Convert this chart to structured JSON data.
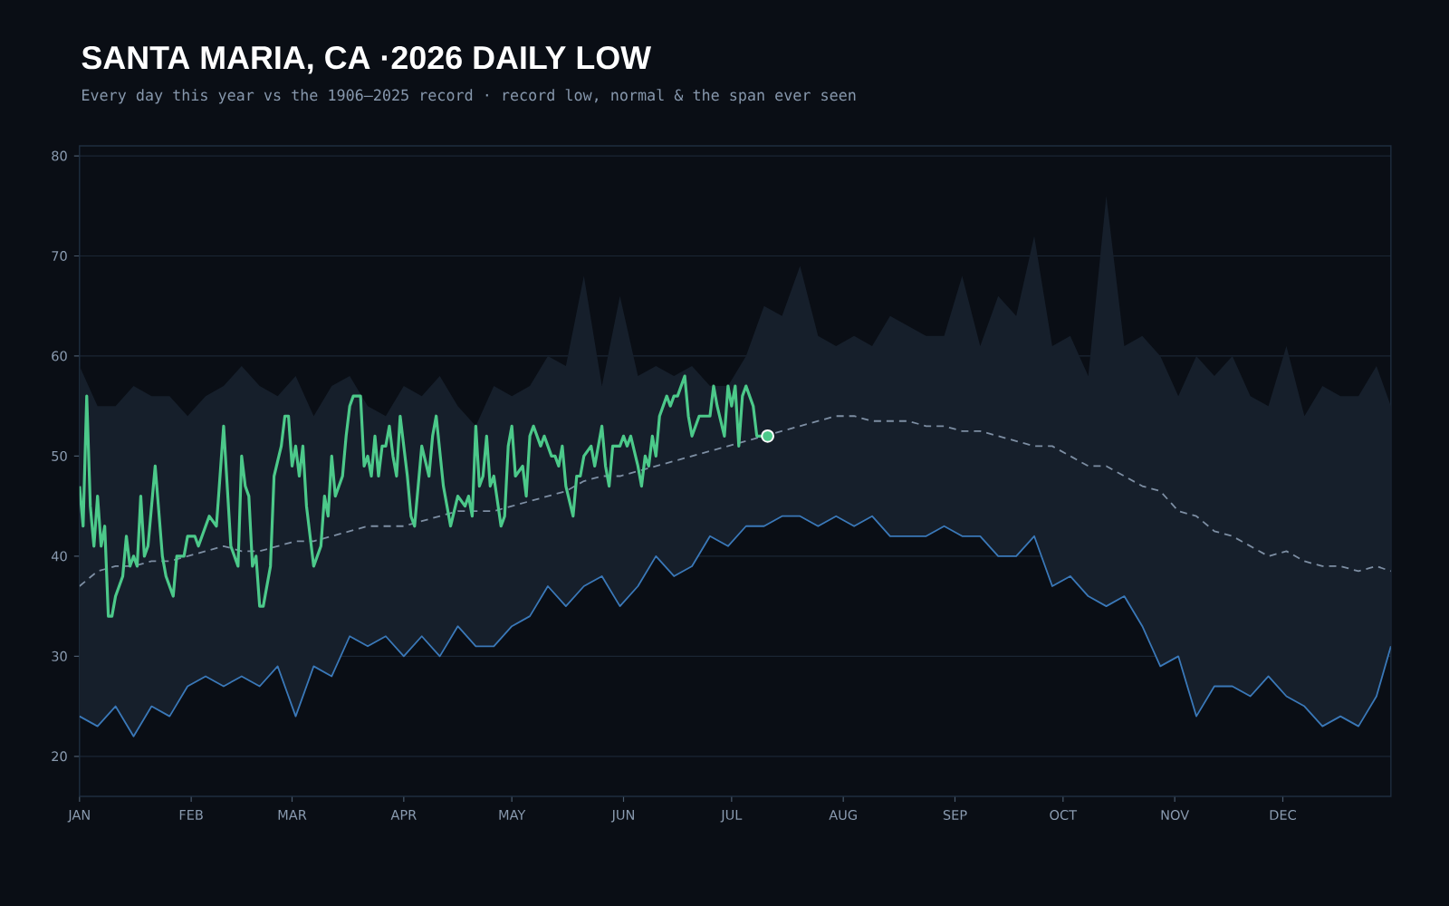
{
  "chart_data": {
    "type": "line",
    "title": "SANTA MARIA, CA ·2026 DAILY LOW",
    "subtitle": "Every day this year vs the 1906–2025 record · record low, normal & the span ever seen",
    "x": [
      "2026-01-01",
      "2026-01-06",
      "2026-01-11",
      "2026-01-16",
      "2026-01-21",
      "2026-01-26",
      "2026-01-31",
      "2026-02-05",
      "2026-02-10",
      "2026-02-15",
      "2026-02-20",
      "2026-02-25",
      "2026-03-02",
      "2026-03-07",
      "2026-03-12",
      "2026-03-17",
      "2026-03-22",
      "2026-03-27",
      "2026-04-01",
      "2026-04-06",
      "2026-04-11",
      "2026-04-16",
      "2026-04-21",
      "2026-04-26",
      "2026-05-01",
      "2026-05-06",
      "2026-05-11",
      "2026-05-16",
      "2026-05-21",
      "2026-05-26",
      "2026-05-31",
      "2026-06-05",
      "2026-06-10",
      "2026-06-15",
      "2026-06-20",
      "2026-06-25",
      "2026-06-30",
      "2026-07-05",
      "2026-07-10",
      "2026-07-15",
      "2026-07-20",
      "2026-07-25",
      "2026-07-30",
      "2026-08-04",
      "2026-08-09",
      "2026-08-14",
      "2026-08-19",
      "2026-08-24",
      "2026-08-29",
      "2026-09-03",
      "2026-09-08",
      "2026-09-13",
      "2026-09-18",
      "2026-09-23",
      "2026-09-28",
      "2026-10-03",
      "2026-10-08",
      "2026-10-13",
      "2026-10-18",
      "2026-10-23",
      "2026-10-28",
      "2026-11-02",
      "2026-11-07",
      "2026-11-12",
      "2026-11-17",
      "2026-11-22",
      "2026-11-27",
      "2026-12-02",
      "2026-12-07",
      "2026-12-12",
      "2026-12-17",
      "2026-12-22",
      "2026-12-27",
      "2026-12-31"
    ],
    "series": [
      {
        "color": "#3a78b8",
        "values": [
          24,
          23,
          25,
          22,
          25,
          24,
          27,
          28,
          27,
          28,
          27,
          29,
          24,
          29,
          28,
          32,
          31,
          32,
          30,
          32,
          30,
          33,
          31,
          31,
          33,
          34,
          37,
          35,
          37,
          38,
          35,
          37,
          40,
          38,
          39,
          42,
          41,
          43,
          43,
          44,
          44,
          43,
          44,
          43,
          44,
          42,
          42,
          42,
          43,
          42,
          42,
          40,
          40,
          42,
          37,
          38,
          36,
          35,
          36,
          33,
          29,
          30,
          24,
          27,
          27,
          26,
          28,
          26,
          25,
          23,
          24,
          23,
          26,
          31
        ],
        "lower": [
          24,
          23,
          25,
          22,
          25,
          24,
          27,
          28,
          27,
          28,
          27,
          29,
          24,
          29,
          28,
          32,
          31,
          32,
          30,
          32,
          30,
          33,
          31,
          31,
          33,
          34,
          37,
          35,
          37,
          38,
          35,
          37,
          40,
          38,
          39,
          42,
          41,
          43,
          43,
          44,
          44,
          43,
          44,
          43,
          44,
          42,
          42,
          42,
          43,
          42,
          42,
          40,
          40,
          42,
          37,
          38,
          36,
          35,
          36,
          33,
          29,
          30,
          24,
          27,
          27,
          26,
          28,
          26,
          25,
          23,
          24,
          23,
          26,
          31
        ],
        "upper": [
          59,
          55,
          55,
          57,
          56,
          56,
          54,
          56,
          57,
          59,
          57,
          56,
          58,
          54,
          57,
          58,
          55,
          54,
          57,
          56,
          58,
          55,
          53,
          57,
          56,
          57,
          60,
          59,
          68,
          57,
          66,
          58,
          59,
          58,
          59,
          57,
          57,
          60,
          65,
          64,
          69,
          62,
          61,
          62,
          61,
          64,
          63,
          62,
          62,
          68,
          61,
          66,
          64,
          72,
          61,
          62,
          58,
          76,
          61,
          62,
          60,
          56,
          60,
          58,
          60,
          56,
          55,
          61,
          54,
          57,
          56,
          56,
          59,
          55
        ]
      },
      {
        "color": "#7d8ea3",
        "line_style": "dashed",
        "values": [
          37,
          38.5,
          39,
          39,
          39.5,
          39.5,
          40,
          40.5,
          41,
          40.5,
          40.5,
          41,
          41.5,
          41.5,
          42,
          42.5,
          43,
          43,
          43,
          43.5,
          44,
          44.5,
          44.5,
          44.5,
          45,
          45.5,
          46,
          46.5,
          47.5,
          48,
          48,
          48.5,
          49,
          49.5,
          50,
          50.5,
          51,
          51.5,
          52,
          52.5,
          53,
          53.5,
          54,
          54,
          53.5,
          53.5,
          53.5,
          53,
          53,
          52.5,
          52.5,
          52,
          51.5,
          51,
          51,
          50,
          49,
          49,
          48,
          47,
          46.5,
          44.5,
          44,
          42.5,
          42,
          41,
          40,
          40.5,
          39.5,
          39,
          39,
          38.5,
          39,
          38.5
        ]
      },
      {
        "color": "#4cc98a",
        "x": [
          "2026-01-01",
          "2026-01-02",
          "2026-01-03",
          "2026-01-04",
          "2026-01-05",
          "2026-01-06",
          "2026-01-07",
          "2026-01-08",
          "2026-01-09",
          "2026-01-10",
          "2026-01-11",
          "2026-01-13",
          "2026-01-14",
          "2026-01-15",
          "2026-01-16",
          "2026-01-17",
          "2026-01-18",
          "2026-01-19",
          "2026-01-20",
          "2026-01-22",
          "2026-01-24",
          "2026-01-25",
          "2026-01-27",
          "2026-01-28",
          "2026-01-30",
          "2026-01-31",
          "2026-02-02",
          "2026-02-03",
          "2026-02-06",
          "2026-02-08",
          "2026-02-10",
          "2026-02-12",
          "2026-02-13",
          "2026-02-14",
          "2026-02-15",
          "2026-02-16",
          "2026-02-17",
          "2026-02-18",
          "2026-02-19",
          "2026-02-20",
          "2026-02-21",
          "2026-02-23",
          "2026-02-24",
          "2026-02-26",
          "2026-02-27",
          "2026-02-28",
          "2026-03-01",
          "2026-03-02",
          "2026-03-03",
          "2026-03-04",
          "2026-03-05",
          "2026-03-06",
          "2026-03-07",
          "2026-03-09",
          "2026-03-10",
          "2026-03-11",
          "2026-03-12",
          "2026-03-13",
          "2026-03-15",
          "2026-03-16",
          "2026-03-17",
          "2026-03-18",
          "2026-03-20",
          "2026-03-21",
          "2026-03-22",
          "2026-03-23",
          "2026-03-24",
          "2026-03-25",
          "2026-03-26",
          "2026-03-27",
          "2026-03-28",
          "2026-03-29",
          "2026-03-30",
          "2026-03-31",
          "2026-04-02",
          "2026-04-03",
          "2026-04-04",
          "2026-04-06",
          "2026-04-08",
          "2026-04-09",
          "2026-04-10",
          "2026-04-12",
          "2026-04-13",
          "2026-04-14",
          "2026-04-16",
          "2026-04-18",
          "2026-04-19",
          "2026-04-20",
          "2026-04-21",
          "2026-04-22",
          "2026-04-23",
          "2026-04-24",
          "2026-04-25",
          "2026-04-26",
          "2026-04-28",
          "2026-04-29",
          "2026-04-30",
          "2026-05-01",
          "2026-05-02",
          "2026-05-04",
          "2026-05-05",
          "2026-05-06",
          "2026-05-07",
          "2026-05-09",
          "2026-05-10",
          "2026-05-12",
          "2026-05-13",
          "2026-05-14",
          "2026-05-15",
          "2026-05-16",
          "2026-05-18",
          "2026-05-19",
          "2026-05-20",
          "2026-05-21",
          "2026-05-23",
          "2026-05-24",
          "2026-05-26",
          "2026-05-27",
          "2026-05-28",
          "2026-05-29",
          "2026-05-31",
          "2026-06-01",
          "2026-06-02",
          "2026-06-03",
          "2026-06-05",
          "2026-06-06",
          "2026-06-07",
          "2026-06-08",
          "2026-06-09",
          "2026-06-10",
          "2026-06-11",
          "2026-06-13",
          "2026-06-14",
          "2026-06-15",
          "2026-06-16",
          "2026-06-18",
          "2026-06-19",
          "2026-06-20",
          "2026-06-22",
          "2026-06-23",
          "2026-06-25",
          "2026-06-26",
          "2026-06-27",
          "2026-06-29",
          "2026-06-30",
          "2026-07-01",
          "2026-07-02",
          "2026-07-03",
          "2026-07-04",
          "2026-07-05",
          "2026-07-07",
          "2026-07-08",
          "2026-07-09",
          "2026-07-11"
        ],
        "values": [
          47,
          43,
          56,
          45,
          41,
          46,
          41,
          43,
          34,
          34,
          36,
          38,
          42,
          39,
          40,
          39,
          46,
          40,
          41,
          49,
          40,
          38,
          36,
          40,
          40,
          42,
          42,
          41,
          44,
          43,
          53,
          41,
          40,
          39,
          50,
          47,
          46,
          39,
          40,
          35,
          35,
          39,
          48,
          51,
          54,
          54,
          49,
          51,
          48,
          51,
          45,
          42,
          39,
          41,
          46,
          44,
          50,
          46,
          48,
          52,
          55,
          56,
          56,
          49,
          50,
          48,
          52,
          48,
          51,
          51,
          53,
          50,
          48,
          54,
          48,
          44,
          43,
          51,
          48,
          52,
          54,
          47,
          45,
          43,
          46,
          45,
          46,
          44,
          53,
          47,
          48,
          52,
          47,
          48,
          43,
          44,
          51,
          53,
          48,
          49,
          46,
          52,
          53,
          51,
          52,
          50,
          50,
          49,
          51,
          47,
          44,
          48,
          48,
          50,
          51,
          49,
          53,
          49,
          47,
          51,
          51,
          52,
          51,
          52,
          49,
          47,
          50,
          49,
          52,
          50,
          54,
          56,
          55,
          56,
          56,
          58,
          54,
          52,
          54,
          54,
          54,
          57,
          55,
          52,
          57,
          55,
          57,
          51,
          56,
          57,
          55,
          52,
          52,
          52
        ]
      },
      {
        "type": "scatter",
        "color": "#4cc98a",
        "marker": "circle",
        "x": [
          "2026-07-11"
        ],
        "values": [
          52
        ]
      }
    ],
    "xlim": [
      "2026-01-01",
      "2026-12-31"
    ],
    "xticks": [
      {
        "value": "2026-01-01",
        "label": "JAN"
      },
      {
        "value": "2026-02-01",
        "label": "FEB"
      },
      {
        "value": "2026-03-01",
        "label": "MAR"
      },
      {
        "value": "2026-04-01",
        "label": "APR"
      },
      {
        "value": "2026-05-01",
        "label": "MAY"
      },
      {
        "value": "2026-06-01",
        "label": "JUN"
      },
      {
        "value": "2026-07-01",
        "label": "JUL"
      },
      {
        "value": "2026-08-01",
        "label": "AUG"
      },
      {
        "value": "2026-09-01",
        "label": "SEP"
      },
      {
        "value": "2026-10-01",
        "label": "OCT"
      },
      {
        "value": "2026-11-01",
        "label": "NOV"
      },
      {
        "value": "2026-12-01",
        "label": "DEC"
      }
    ],
    "ylim": [
      16,
      81
    ],
    "yticks": [
      20,
      30,
      40,
      50,
      60,
      70,
      80
    ],
    "grid": "y"
  }
}
